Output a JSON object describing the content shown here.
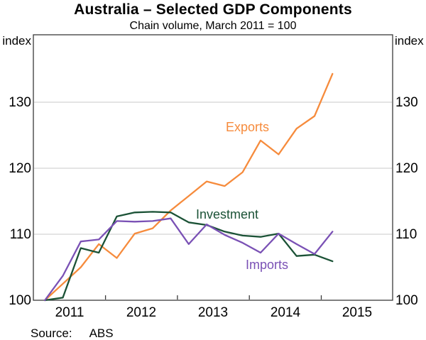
{
  "header": {
    "title": "Australia – Selected GDP Components",
    "subtitle": "Chain volume, March 2011 = 100"
  },
  "footer": {
    "source_label": "Source:",
    "source_value": "ABS"
  },
  "chart_data": {
    "type": "line",
    "title": "Australia – Selected GDP Components",
    "subtitle": "Chain volume, March 2011 = 100",
    "y_axis_unit": "index",
    "ylim": [
      100,
      140
    ],
    "grid": "horizontal-only",
    "y_gridlines": [
      110,
      120,
      130
    ],
    "y_tick_labels": [
      "130",
      "120",
      "110",
      "100"
    ],
    "y_tick_values": [
      130,
      120,
      110,
      100
    ],
    "x_tick_labels": [
      "2011",
      "2012",
      "2013",
      "2014",
      "2015"
    ],
    "x": [
      "2011 Q1",
      "2011 Q2",
      "2011 Q3",
      "2011 Q4",
      "2012 Q1",
      "2012 Q2",
      "2012 Q3",
      "2012 Q4",
      "2013 Q1",
      "2013 Q2",
      "2013 Q3",
      "2013 Q4",
      "2014 Q1",
      "2014 Q2",
      "2014 Q3",
      "2014 Q4",
      "2015 Q1"
    ],
    "legend_position": "inline-labels",
    "axis_color": "#3a3a3a",
    "gridline_color": "#c9c9c9",
    "series": [
      {
        "name": "Exports",
        "color": "#f68b3c",
        "values": [
          100,
          102.5,
          105.0,
          108.5,
          106.4,
          110.1,
          110.9,
          113.6,
          115.8,
          118.0,
          117.3,
          119.4,
          124.2,
          122.1,
          126.0,
          127.9,
          134.3
        ]
      },
      {
        "name": "Investment",
        "color": "#1b5236",
        "values": [
          100,
          100.4,
          107.9,
          107.2,
          112.7,
          113.3,
          113.4,
          113.3,
          111.8,
          111.4,
          110.4,
          109.8,
          109.6,
          110.1,
          106.7,
          106.9,
          105.9
        ]
      },
      {
        "name": "Imports",
        "color": "#7a51b5",
        "values": [
          100,
          103.7,
          108.9,
          109.2,
          112.0,
          111.9,
          112.0,
          112.4,
          108.5,
          111.5,
          109.9,
          108.7,
          107.2,
          110.1,
          108.5,
          107.0,
          110.4
        ]
      }
    ]
  }
}
